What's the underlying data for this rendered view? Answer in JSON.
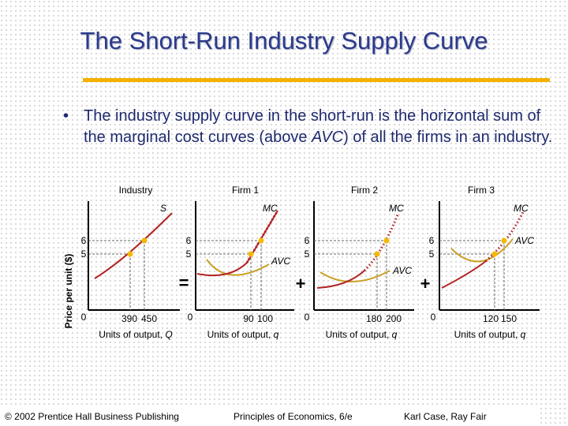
{
  "slide": {
    "title": "The Short-Run Industry Supply Curve",
    "bullet_before": "The industry supply curve in the short-run is the horizontal sum of the marginal cost curves (above ",
    "bullet_em": "AVC",
    "bullet_after": ") of all the firms in an industry."
  },
  "diagram": {
    "y_axis_label": "Price per unit ($)",
    "panels": [
      {
        "name": "Industry",
        "curves": [
          "S"
        ],
        "price_ticks": [
          "6",
          "5"
        ],
        "zero": "0",
        "q_ticks": [
          "390",
          "450"
        ],
        "x_label_prefix": "Units of output, ",
        "x_label_var": "Q"
      },
      {
        "name": "Firm 1",
        "curves": [
          "MC",
          "AVC"
        ],
        "price_ticks": [
          "6",
          "5"
        ],
        "zero": "0",
        "q_ticks": [
          "90",
          "100"
        ],
        "x_label_prefix": "Units of output, ",
        "x_label_var": "q"
      },
      {
        "name": "Firm 2",
        "curves": [
          "MC",
          "AVC"
        ],
        "price_ticks": [
          "6",
          "5"
        ],
        "zero": "0",
        "q_ticks": [
          "180",
          "200"
        ],
        "x_label_prefix": "Units of output, ",
        "x_label_var": "q"
      },
      {
        "name": "Firm 3",
        "curves": [
          "MC",
          "AVC"
        ],
        "price_ticks": [
          "6",
          "5"
        ],
        "zero": "0",
        "q_ticks": [
          "120",
          "150"
        ],
        "x_label_prefix": "Units of output, ",
        "x_label_var": "q"
      }
    ],
    "operators": [
      "=",
      "+",
      "+"
    ],
    "colors": {
      "mc": "#b22222",
      "avc": "#c9a227",
      "points": "#f5b800",
      "guides": "#666666"
    }
  },
  "footer": {
    "copyright": "© 2002 Prentice Hall Business Publishing",
    "book": "Principles of Economics, 6/e",
    "authors": "Karl Case, Ray Fair"
  }
}
